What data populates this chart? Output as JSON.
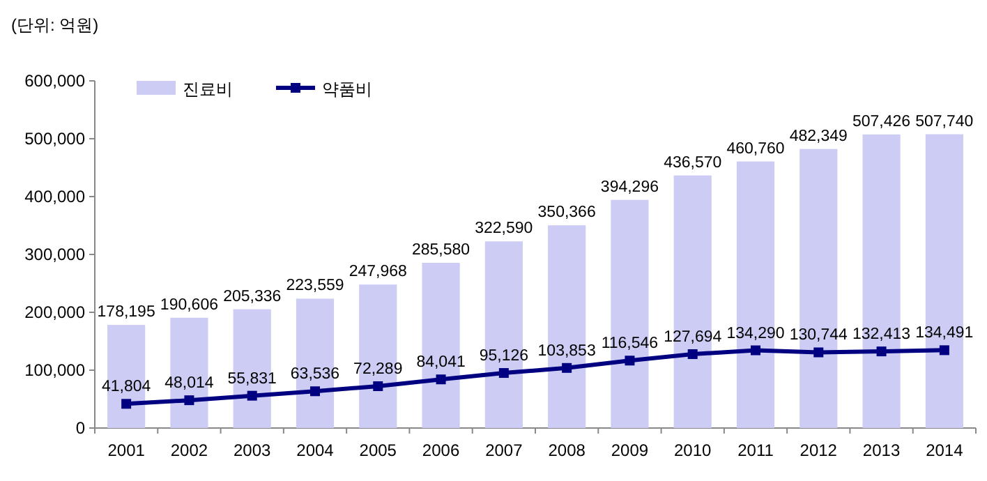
{
  "chart_data": {
    "type": "bar",
    "ylabel": "(단위: 억원)",
    "categories": [
      "2001",
      "2002",
      "2003",
      "2004",
      "2005",
      "2006",
      "2007",
      "2008",
      "2009",
      "2010",
      "2011",
      "2012",
      "2013",
      "2014"
    ],
    "series": [
      {
        "name": "진료비",
        "color": "#ccccf5",
        "values": [
          178195,
          190606,
          205336,
          223559,
          247968,
          285580,
          322590,
          350366,
          394296,
          436570,
          460760,
          482349,
          507426,
          507740
        ],
        "value_labels": [
          "178,195",
          "190,606",
          "205,336",
          "223,559",
          "247,968",
          "285,580",
          "322,590",
          "350,366",
          "394,296",
          "436,570",
          "460,760",
          "482,349",
          "507,426",
          "507,740"
        ]
      },
      {
        "name": "약품비",
        "type": "line",
        "color": "#000080",
        "marker": "square",
        "values": [
          41804,
          48014,
          55831,
          63536,
          72289,
          84041,
          95126,
          103853,
          116546,
          127694,
          134290,
          130744,
          132413,
          134491
        ],
        "value_labels": [
          "41,804",
          "48,014",
          "55,831",
          "63,536",
          "72,289",
          "84,041",
          "95,126",
          "103,853",
          "116,546",
          "127,694",
          "134,290",
          "130,744",
          "132,413",
          "134,491"
        ]
      }
    ],
    "ylim": [
      0,
      600000
    ],
    "yticks": [
      {
        "value": 0,
        "label": "0"
      },
      {
        "value": 100000,
        "label": "100,000"
      },
      {
        "value": 200000,
        "label": "200,000"
      },
      {
        "value": 300000,
        "label": "300,000"
      },
      {
        "value": 400000,
        "label": "400,000"
      },
      {
        "value": 500000,
        "label": "500,000"
      },
      {
        "value": 600000,
        "label": "600,000"
      }
    ],
    "grid": false,
    "legend": "top left"
  }
}
